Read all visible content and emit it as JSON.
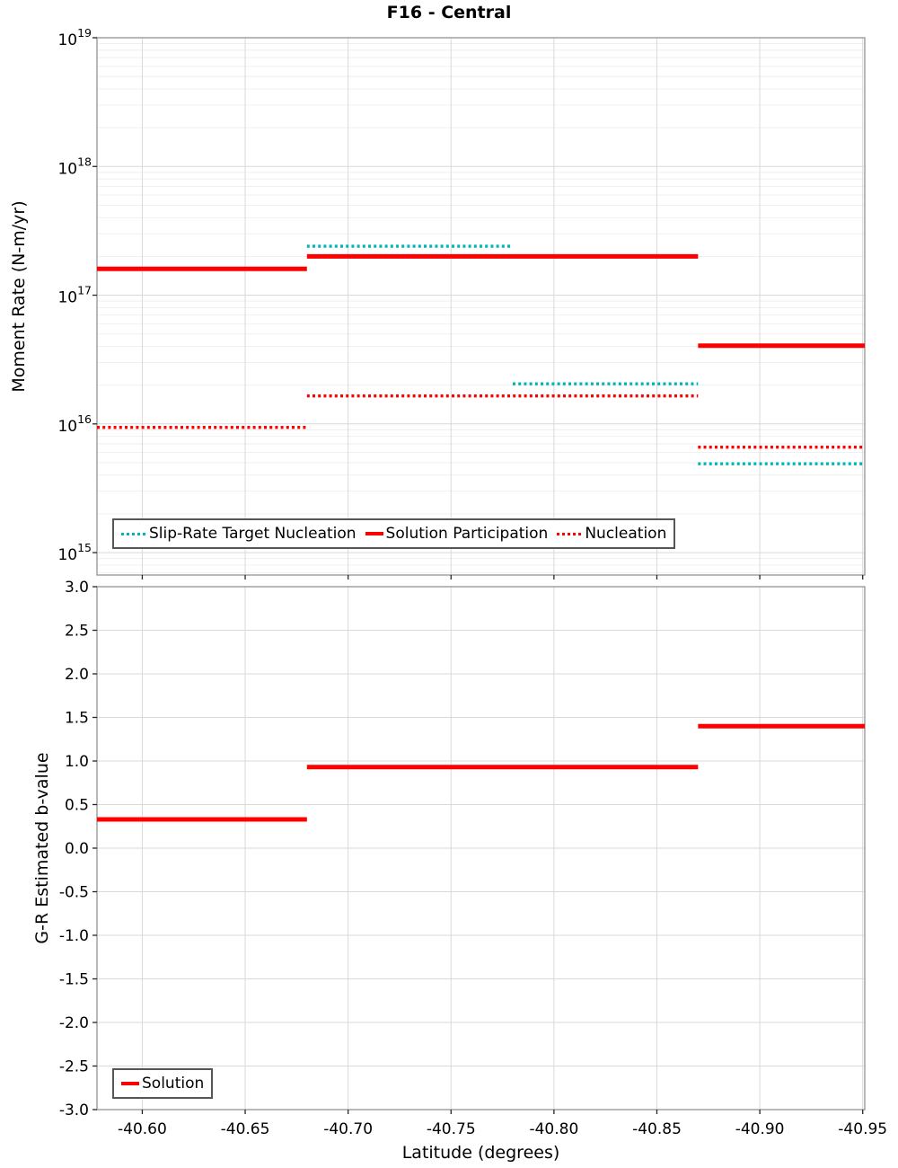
{
  "title": "F16 - Central",
  "colors": {
    "red": "#ff0000",
    "teal": "#00b4ba",
    "grid_major": "#d9d9d9",
    "grid_minor": "#eeeeee",
    "axis_border": "#9b9b9b",
    "tick_mark": "#262626",
    "legend_border": "#565656",
    "text": "#000000"
  },
  "chart_data": [
    {
      "type": "line",
      "title": "F16 - Central",
      "ylabel": "Moment Rate (N-m/yr)",
      "yscale": "log",
      "ylim": [
        670000000000000.0,
        1e+19
      ],
      "yticks": [
        {
          "v": 1e+19,
          "base": "10",
          "exp": "19"
        },
        {
          "v": 1e+18,
          "base": "10",
          "exp": "18"
        },
        {
          "v": 1e+17,
          "base": "10",
          "exp": "17"
        },
        {
          "v": 1e+16,
          "base": "10",
          "exp": "16"
        },
        {
          "v": 1000000000000000.0,
          "base": "10",
          "exp": "15"
        }
      ],
      "xlim": [
        -40.578,
        -40.951
      ],
      "xticks": [
        {
          "v": -40.6,
          "label": "-40.60"
        },
        {
          "v": -40.65,
          "label": "-40.65"
        },
        {
          "v": -40.7,
          "label": "-40.70"
        },
        {
          "v": -40.75,
          "label": "-40.75"
        },
        {
          "v": -40.8,
          "label": "-40.80"
        },
        {
          "v": -40.85,
          "label": "-40.85"
        },
        {
          "v": -40.9,
          "label": "-40.90"
        },
        {
          "v": -40.95,
          "label": "-40.95"
        }
      ],
      "xtick_labels_visible": false,
      "grid": true,
      "legend_position": "inside bottom-left",
      "series": [
        {
          "name": "Slip-Rate Target Nucleation",
          "color_key": "teal",
          "style": "dotted",
          "segments": [
            {
              "x": [
                -40.68,
                -40.78
              ],
              "y": 2.4e+17
            },
            {
              "x": [
                -40.78,
                -40.87
              ],
              "y": 2.05e+16
            },
            {
              "x": [
                -40.87,
                -40.951
              ],
              "y": 4900000000000000.0
            }
          ]
        },
        {
          "name": "Solution Participation",
          "color_key": "red",
          "style": "solid",
          "segments": [
            {
              "x": [
                -40.578,
                -40.68
              ],
              "y": 1.6e+17
            },
            {
              "x": [
                -40.68,
                -40.87
              ],
              "y": 2e+17
            },
            {
              "x": [
                -40.87,
                -40.951
              ],
              "y": 4.05e+16
            }
          ]
        },
        {
          "name": "Nucleation",
          "color_key": "red",
          "style": "dotted",
          "segments": [
            {
              "x": [
                -40.578,
                -40.68
              ],
              "y": 9400000000000000.0
            },
            {
              "x": [
                -40.68,
                -40.87
              ],
              "y": 1.65e+16
            },
            {
              "x": [
                -40.87,
                -40.951
              ],
              "y": 6600000000000000.0
            }
          ]
        }
      ]
    },
    {
      "type": "line",
      "ylabel": "G-R Estimated b-value",
      "xlabel": "Latitude (degrees)",
      "yscale": "linear",
      "ylim": [
        -3.0,
        3.0
      ],
      "yticks": [
        {
          "v": 3.0,
          "label": "3.0"
        },
        {
          "v": 2.5,
          "label": "2.5"
        },
        {
          "v": 2.0,
          "label": "2.0"
        },
        {
          "v": 1.5,
          "label": "1.5"
        },
        {
          "v": 1.0,
          "label": "1.0"
        },
        {
          "v": 0.5,
          "label": "0.5"
        },
        {
          "v": 0.0,
          "label": "0.0"
        },
        {
          "v": -0.5,
          "label": "-0.5"
        },
        {
          "v": -1.0,
          "label": "-1.0"
        },
        {
          "v": -1.5,
          "label": "-1.5"
        },
        {
          "v": -2.0,
          "label": "-2.0"
        },
        {
          "v": -2.5,
          "label": "-2.5"
        },
        {
          "v": -3.0,
          "label": "-3.0"
        }
      ],
      "xlim": [
        -40.578,
        -40.951
      ],
      "xticks": [
        {
          "v": -40.6,
          "label": "-40.60"
        },
        {
          "v": -40.65,
          "label": "-40.65"
        },
        {
          "v": -40.7,
          "label": "-40.70"
        },
        {
          "v": -40.75,
          "label": "-40.75"
        },
        {
          "v": -40.8,
          "label": "-40.80"
        },
        {
          "v": -40.85,
          "label": "-40.85"
        },
        {
          "v": -40.9,
          "label": "-40.90"
        },
        {
          "v": -40.95,
          "label": "-40.95"
        }
      ],
      "xtick_labels_visible": true,
      "grid": true,
      "legend_position": "inside bottom-left",
      "series": [
        {
          "name": "Solution",
          "color_key": "red",
          "style": "solid",
          "segments": [
            {
              "x": [
                -40.578,
                -40.68
              ],
              "y": 0.33
            },
            {
              "x": [
                -40.68,
                -40.87
              ],
              "y": 0.93
            },
            {
              "x": [
                -40.87,
                -40.951
              ],
              "y": 1.4
            }
          ]
        }
      ]
    }
  ]
}
